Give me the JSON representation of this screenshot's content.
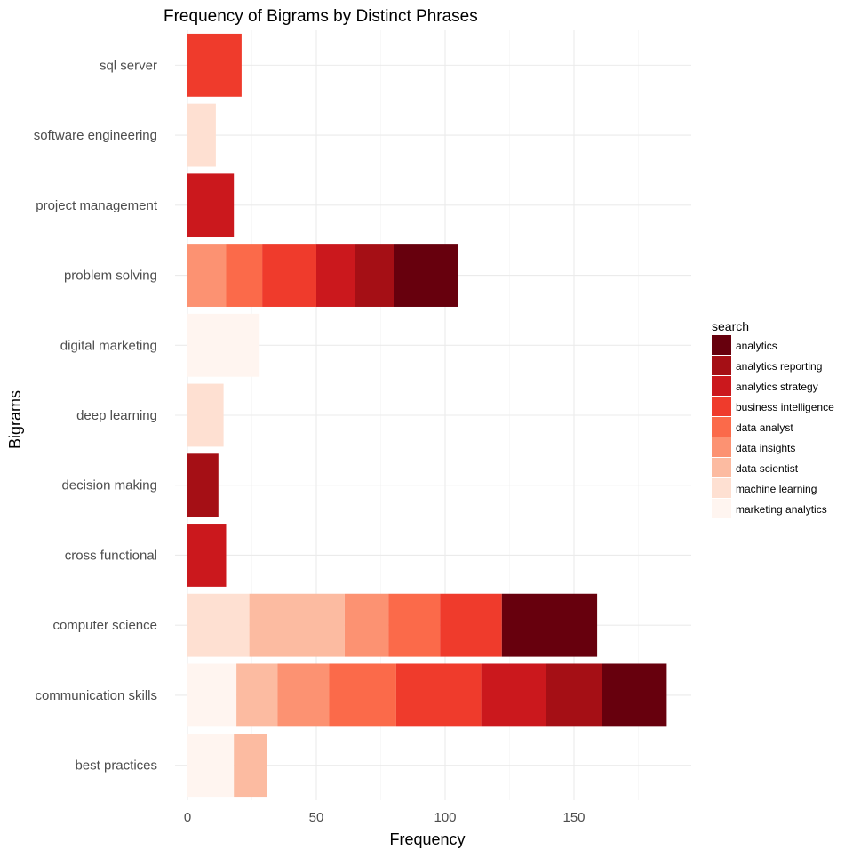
{
  "chart_data": {
    "type": "bar",
    "orientation": "horizontal",
    "stacked": true,
    "title": "Frequency of Bigrams by Distinct Phrases",
    "xlabel": "Frequency",
    "ylabel": "Bigrams",
    "xlim": [
      0,
      195
    ],
    "x_ticks": [
      0,
      50,
      100,
      150
    ],
    "x_tick_labels": [
      "0",
      "50",
      "100",
      "150"
    ],
    "grid": true,
    "legend_position": "right",
    "legend_title": "search",
    "categories": [
      "best practices",
      "communication skills",
      "computer science",
      "cross functional",
      "decision making",
      "deep learning",
      "digital marketing",
      "problem solving",
      "project management",
      "software engineering",
      "sql server"
    ],
    "series": [
      {
        "name": "marketing analytics",
        "color": "#FFF5F0",
        "values": [
          18,
          19,
          0,
          0,
          0,
          0,
          28,
          0,
          0,
          0,
          0
        ]
      },
      {
        "name": "machine learning",
        "color": "#FEE0D2",
        "values": [
          0,
          0,
          24,
          0,
          0,
          14,
          0,
          0,
          0,
          11,
          0
        ]
      },
      {
        "name": "data scientist",
        "color": "#FCBBA1",
        "values": [
          13,
          16,
          37,
          0,
          0,
          0,
          0,
          0,
          0,
          0,
          0
        ]
      },
      {
        "name": "data insights",
        "color": "#FC9272",
        "values": [
          0,
          20,
          17,
          0,
          0,
          0,
          0,
          15,
          0,
          0,
          0
        ]
      },
      {
        "name": "data analyst",
        "color": "#FB6A4A",
        "values": [
          0,
          26,
          20,
          0,
          0,
          0,
          0,
          14,
          0,
          0,
          0
        ]
      },
      {
        "name": "business intelligence",
        "color": "#EF3B2C",
        "values": [
          0,
          33,
          24,
          0,
          0,
          0,
          0,
          21,
          0,
          0,
          21
        ]
      },
      {
        "name": "analytics strategy",
        "color": "#CB181D",
        "values": [
          0,
          25,
          0,
          15,
          0,
          0,
          0,
          15,
          18,
          0,
          0
        ]
      },
      {
        "name": "analytics reporting",
        "color": "#A50F15",
        "values": [
          0,
          22,
          0,
          0,
          12,
          0,
          0,
          15,
          0,
          0,
          0
        ]
      },
      {
        "name": "analytics",
        "color": "#67000D",
        "values": [
          0,
          25,
          37,
          0,
          0,
          0,
          0,
          25,
          0,
          0,
          0
        ]
      }
    ],
    "legend_order": [
      "analytics",
      "analytics reporting",
      "analytics strategy",
      "business intelligence",
      "data analyst",
      "data insights",
      "data scientist",
      "machine learning",
      "marketing analytics"
    ]
  }
}
